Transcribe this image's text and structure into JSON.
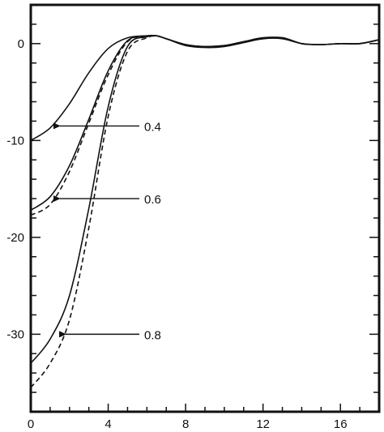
{
  "chart_data": {
    "type": "line",
    "title": "",
    "xlabel": "",
    "ylabel": "",
    "xlim": [
      0,
      18
    ],
    "ylim": [
      -38,
      4
    ],
    "grid": false,
    "x_ticks": [
      0,
      4,
      8,
      12,
      16
    ],
    "y_ticks": [
      0,
      -10,
      -20,
      -30
    ],
    "x_tick_labels": [
      "0",
      "4",
      "8",
      "12",
      "16"
    ],
    "y_tick_labels": [
      "0",
      "-10",
      "-20",
      "-30"
    ],
    "colors": {
      "line": "#111111",
      "axis": "#111111",
      "background": "#ffffff"
    },
    "series": [
      {
        "style": "solid",
        "label_ref": 0,
        "x": [
          0,
          1,
          2,
          3,
          4,
          5,
          6,
          6.5,
          7,
          8,
          9,
          10,
          11,
          12,
          13,
          14,
          15,
          16,
          17,
          18
        ],
        "y": [
          -10,
          -8.7,
          -6.2,
          -3.0,
          -0.5,
          0.6,
          0.8,
          0.8,
          0.5,
          -0.1,
          -0.3,
          -0.2,
          0.2,
          0.6,
          0.6,
          0.0,
          -0.1,
          0.0,
          0.0,
          0.4
        ]
      },
      {
        "style": "solid",
        "label_ref": 1,
        "x": [
          0,
          1,
          2,
          3,
          4,
          5,
          6,
          6.5,
          7,
          8,
          9,
          10,
          11,
          12,
          13,
          14,
          15,
          16,
          17,
          18
        ],
        "y": [
          -17.2,
          -15.8,
          -12.6,
          -7.8,
          -2.8,
          0.3,
          0.8,
          0.8,
          0.5,
          -0.1,
          -0.3,
          -0.2,
          0.2,
          0.5,
          0.6,
          0.0,
          -0.1,
          0.0,
          0.0,
          0.4
        ]
      },
      {
        "style": "dashed",
        "label_ref": 1,
        "x": [
          0,
          1,
          2,
          3,
          4,
          5,
          6,
          6.5
        ],
        "y": [
          -17.7,
          -16.6,
          -13.2,
          -8.2,
          -3.2,
          0.2,
          0.8,
          0.8
        ]
      },
      {
        "style": "solid",
        "label_ref": 2,
        "x": [
          0,
          1,
          2,
          3,
          4,
          5,
          6,
          6.5,
          7,
          8,
          9,
          10,
          11,
          12,
          13,
          14,
          15,
          16,
          17,
          18
        ],
        "y": [
          -33.0,
          -30.5,
          -26.0,
          -17.0,
          -6.5,
          -0.3,
          0.7,
          0.8,
          0.5,
          -0.2,
          -0.4,
          -0.3,
          0.1,
          0.5,
          0.5,
          0.0,
          -0.1,
          0.0,
          0.0,
          0.4
        ]
      },
      {
        "style": "dashed",
        "label_ref": 2,
        "x": [
          0,
          1,
          2,
          3,
          4,
          5,
          6,
          6.5
        ],
        "y": [
          -35.5,
          -33.0,
          -28.5,
          -19.0,
          -7.5,
          -0.8,
          0.6,
          0.8
        ]
      }
    ],
    "annotations": [
      {
        "text": "0.4",
        "arrow_to": [
          1.5,
          -8.5
        ]
      },
      {
        "text": "0.6",
        "arrow_to": [
          1.5,
          -16.0
        ]
      },
      {
        "text": "0.8",
        "arrow_to": [
          1.8,
          -30.0
        ]
      }
    ]
  }
}
